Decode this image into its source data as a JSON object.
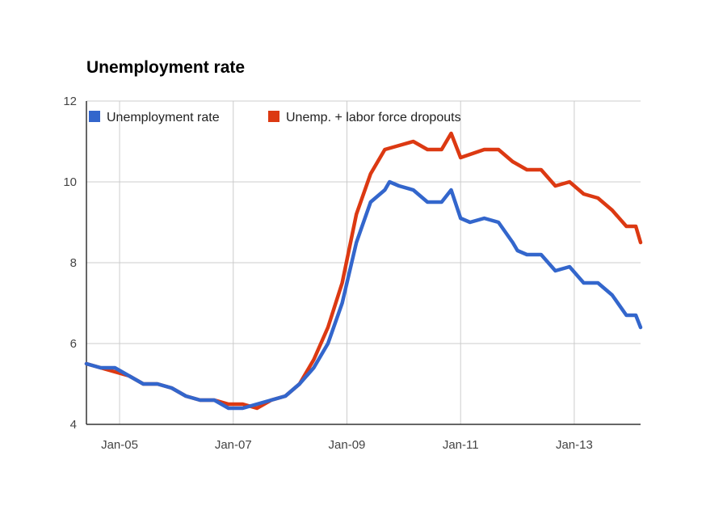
{
  "chart_data": {
    "type": "line",
    "title": "Unemployment rate",
    "xlabel": "",
    "ylabel": "",
    "ylim": [
      4,
      12
    ],
    "xlim": [
      "2004-06",
      "2014-03"
    ],
    "yticks": [
      "4",
      "6",
      "8",
      "10",
      "12"
    ],
    "xticks": [
      {
        "date": "2005-01",
        "label": "Jan-05"
      },
      {
        "date": "2007-01",
        "label": "Jan-07"
      },
      {
        "date": "2009-01",
        "label": "Jan-09"
      },
      {
        "date": "2011-01",
        "label": "Jan-11"
      },
      {
        "date": "2013-01",
        "label": "Jan-13"
      }
    ],
    "grid": true,
    "legend_position": "top-left",
    "series": [
      {
        "name": "Unemployment rate",
        "color": "#3366cc",
        "points": [
          [
            "2004-06",
            5.5
          ],
          [
            "2004-09",
            5.4
          ],
          [
            "2004-12",
            5.4
          ],
          [
            "2005-03",
            5.2
          ],
          [
            "2005-06",
            5.0
          ],
          [
            "2005-09",
            5.0
          ],
          [
            "2005-12",
            4.9
          ],
          [
            "2006-03",
            4.7
          ],
          [
            "2006-06",
            4.6
          ],
          [
            "2006-09",
            4.6
          ],
          [
            "2006-12",
            4.4
          ],
          [
            "2007-03",
            4.4
          ],
          [
            "2007-06",
            4.5
          ],
          [
            "2007-09",
            4.6
          ],
          [
            "2007-12",
            4.7
          ],
          [
            "2008-03",
            5.0
          ],
          [
            "2008-06",
            5.4
          ],
          [
            "2008-09",
            6.0
          ],
          [
            "2008-12",
            7.0
          ],
          [
            "2009-03",
            8.5
          ],
          [
            "2009-06",
            9.5
          ],
          [
            "2009-09",
            9.8
          ],
          [
            "2009-10",
            10.0
          ],
          [
            "2009-12",
            9.9
          ],
          [
            "2010-03",
            9.8
          ],
          [
            "2010-06",
            9.5
          ],
          [
            "2010-09",
            9.5
          ],
          [
            "2010-11",
            9.8
          ],
          [
            "2011-01",
            9.1
          ],
          [
            "2011-03",
            9.0
          ],
          [
            "2011-06",
            9.1
          ],
          [
            "2011-09",
            9.0
          ],
          [
            "2011-12",
            8.5
          ],
          [
            "2012-01",
            8.3
          ],
          [
            "2012-03",
            8.2
          ],
          [
            "2012-06",
            8.2
          ],
          [
            "2012-09",
            7.8
          ],
          [
            "2012-12",
            7.9
          ],
          [
            "2013-03",
            7.5
          ],
          [
            "2013-06",
            7.5
          ],
          [
            "2013-09",
            7.2
          ],
          [
            "2013-12",
            6.7
          ],
          [
            "2014-02",
            6.7
          ],
          [
            "2014-03",
            6.4
          ]
        ]
      },
      {
        "name": "Unemp. + labor force dropouts",
        "color": "#dc3912",
        "points": [
          [
            "2004-06",
            5.5
          ],
          [
            "2004-09",
            5.4
          ],
          [
            "2004-12",
            5.3
          ],
          [
            "2005-03",
            5.2
          ],
          [
            "2005-06",
            5.0
          ],
          [
            "2005-09",
            5.0
          ],
          [
            "2005-12",
            4.9
          ],
          [
            "2006-03",
            4.7
          ],
          [
            "2006-06",
            4.6
          ],
          [
            "2006-09",
            4.6
          ],
          [
            "2006-12",
            4.5
          ],
          [
            "2007-03",
            4.5
          ],
          [
            "2007-06",
            4.4
          ],
          [
            "2007-09",
            4.6
          ],
          [
            "2007-12",
            4.7
          ],
          [
            "2008-03",
            5.0
          ],
          [
            "2008-06",
            5.6
          ],
          [
            "2008-09",
            6.4
          ],
          [
            "2008-12",
            7.5
          ],
          [
            "2009-03",
            9.2
          ],
          [
            "2009-06",
            10.2
          ],
          [
            "2009-09",
            10.8
          ],
          [
            "2009-12",
            10.9
          ],
          [
            "2010-03",
            11.0
          ],
          [
            "2010-06",
            10.8
          ],
          [
            "2010-09",
            10.8
          ],
          [
            "2010-11",
            11.2
          ],
          [
            "2011-01",
            10.6
          ],
          [
            "2011-06",
            10.8
          ],
          [
            "2011-09",
            10.8
          ],
          [
            "2011-12",
            10.5
          ],
          [
            "2012-03",
            10.3
          ],
          [
            "2012-06",
            10.3
          ],
          [
            "2012-09",
            9.9
          ],
          [
            "2012-12",
            10.0
          ],
          [
            "2013-03",
            9.7
          ],
          [
            "2013-06",
            9.6
          ],
          [
            "2013-09",
            9.3
          ],
          [
            "2013-12",
            8.9
          ],
          [
            "2014-02",
            8.9
          ],
          [
            "2014-03",
            8.5
          ]
        ]
      }
    ]
  }
}
